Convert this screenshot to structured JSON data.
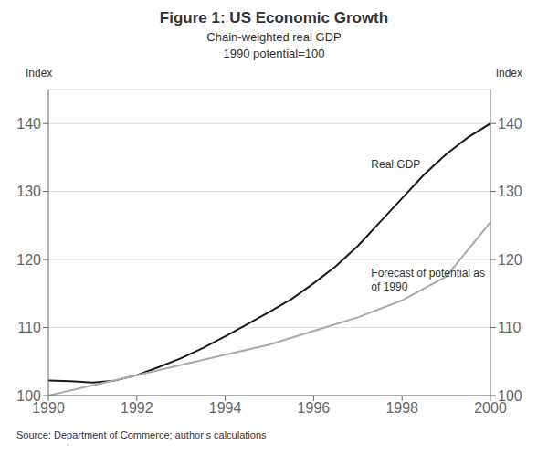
{
  "chart_data": {
    "type": "line",
    "title": "Figure 1: US Economic Growth",
    "subtitle": [
      "Chain-weighted real GDP",
      "1990 potential=100"
    ],
    "ylabel": "Index",
    "y2label": "Index",
    "source": "Source: Department of Commerce; author’s calculations",
    "xlim": [
      1990,
      2000
    ],
    "xticks": [
      1990,
      1992,
      1994,
      1996,
      1998,
      2000
    ],
    "ylim": [
      100,
      145
    ],
    "yticks": [
      100,
      110,
      120,
      130,
      140
    ],
    "y2lim": [
      100,
      145
    ],
    "y2ticks": [
      100,
      110,
      120,
      130,
      140
    ],
    "grid": true,
    "series": [
      {
        "color": "#1a1a1a",
        "x": [
          1990.0,
          1990.5,
          1991.0,
          1991.5,
          1992.0,
          1992.5,
          1993.0,
          1993.5,
          1994.0,
          1994.5,
          1995.0,
          1995.5,
          1996.0,
          1996.5,
          1997.0,
          1997.5,
          1998.0,
          1998.5,
          1999.0,
          1999.5,
          2000.0
        ],
        "values": [
          102.2,
          102.1,
          101.9,
          102.2,
          103.0,
          104.2,
          105.5,
          107.0,
          108.7,
          110.5,
          112.3,
          114.2,
          116.5,
          119.0,
          122.0,
          125.5,
          129.0,
          132.5,
          135.5,
          138.0,
          140.0
        ]
      },
      {
        "color": "#aaaaaa",
        "x": [
          1990.0,
          1991.0,
          1992.0,
          1993.0,
          1994.0,
          1995.0,
          1996.0,
          1997.0,
          1998.0,
          1999.0,
          2000.0
        ],
        "values": [
          100.0,
          101.5,
          103.0,
          104.5,
          106.0,
          107.5,
          109.5,
          111.5,
          114.0,
          117.5,
          125.5
        ]
      }
    ],
    "annotations": [
      {
        "text": [
          "Real GDP"
        ],
        "x": 1997.3,
        "y": 133.5
      },
      {
        "text": [
          "Forecast of potential as",
          "of 1990"
        ],
        "x": 1997.3,
        "y": 115.5
      }
    ]
  }
}
